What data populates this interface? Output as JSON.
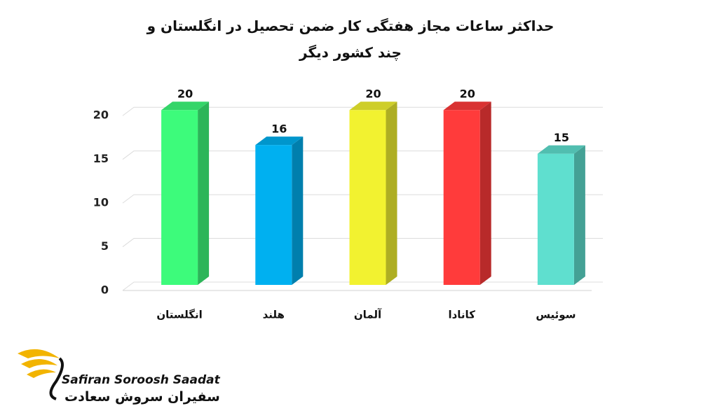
{
  "chart_data": {
    "type": "bar3d",
    "title": "حداکثر ساعات مجاز هفتگی کار ضمن تحصیل در انگلستان و چند کشور دیگر",
    "categories": [
      "انگلستان",
      "هلند",
      "آلمان",
      "کانادا",
      "سوئیس"
    ],
    "values": [
      20,
      16,
      20,
      20,
      15
    ],
    "colors": [
      "#3dfb7b",
      "#00b0f0",
      "#f2f230",
      "#ff3b3b",
      "#5fdfcf"
    ],
    "ylim": [
      0,
      22.5
    ],
    "yticks": [
      0,
      5,
      10,
      15,
      20
    ],
    "grid": true
  },
  "brand": {
    "name": "Safiran Soroosh Saadat",
    "name_fa": "سفیران سروش سعادت"
  }
}
